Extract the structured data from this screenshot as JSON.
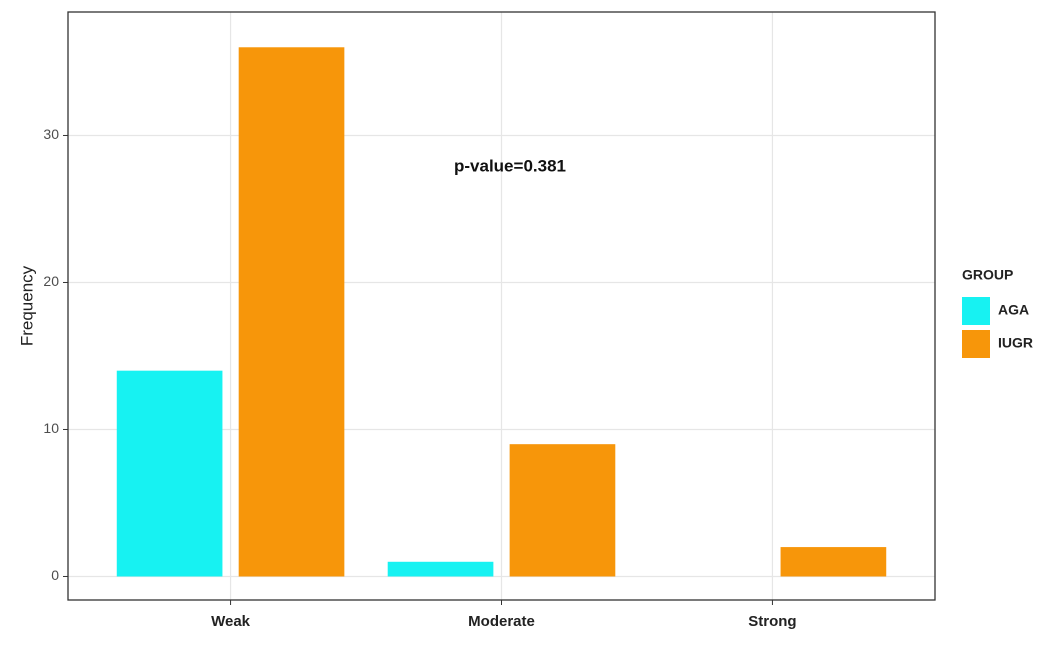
{
  "chart_data": {
    "type": "bar",
    "y_label": "Frequency",
    "annotation": "p-value=0.381",
    "categories": [
      "Weak",
      "Moderate",
      "Strong"
    ],
    "legend_title": "GROUP",
    "series": [
      {
        "name": "AGA",
        "color": "#17f2f2",
        "values": [
          14,
          1,
          0
        ]
      },
      {
        "name": "IUGR",
        "color": "#f7960a",
        "values": [
          36,
          9,
          2
        ]
      }
    ],
    "ylim": [
      -1.6,
      38.4
    ],
    "yticks": [
      0,
      10,
      20,
      30
    ],
    "grid": true,
    "legend": "right"
  }
}
